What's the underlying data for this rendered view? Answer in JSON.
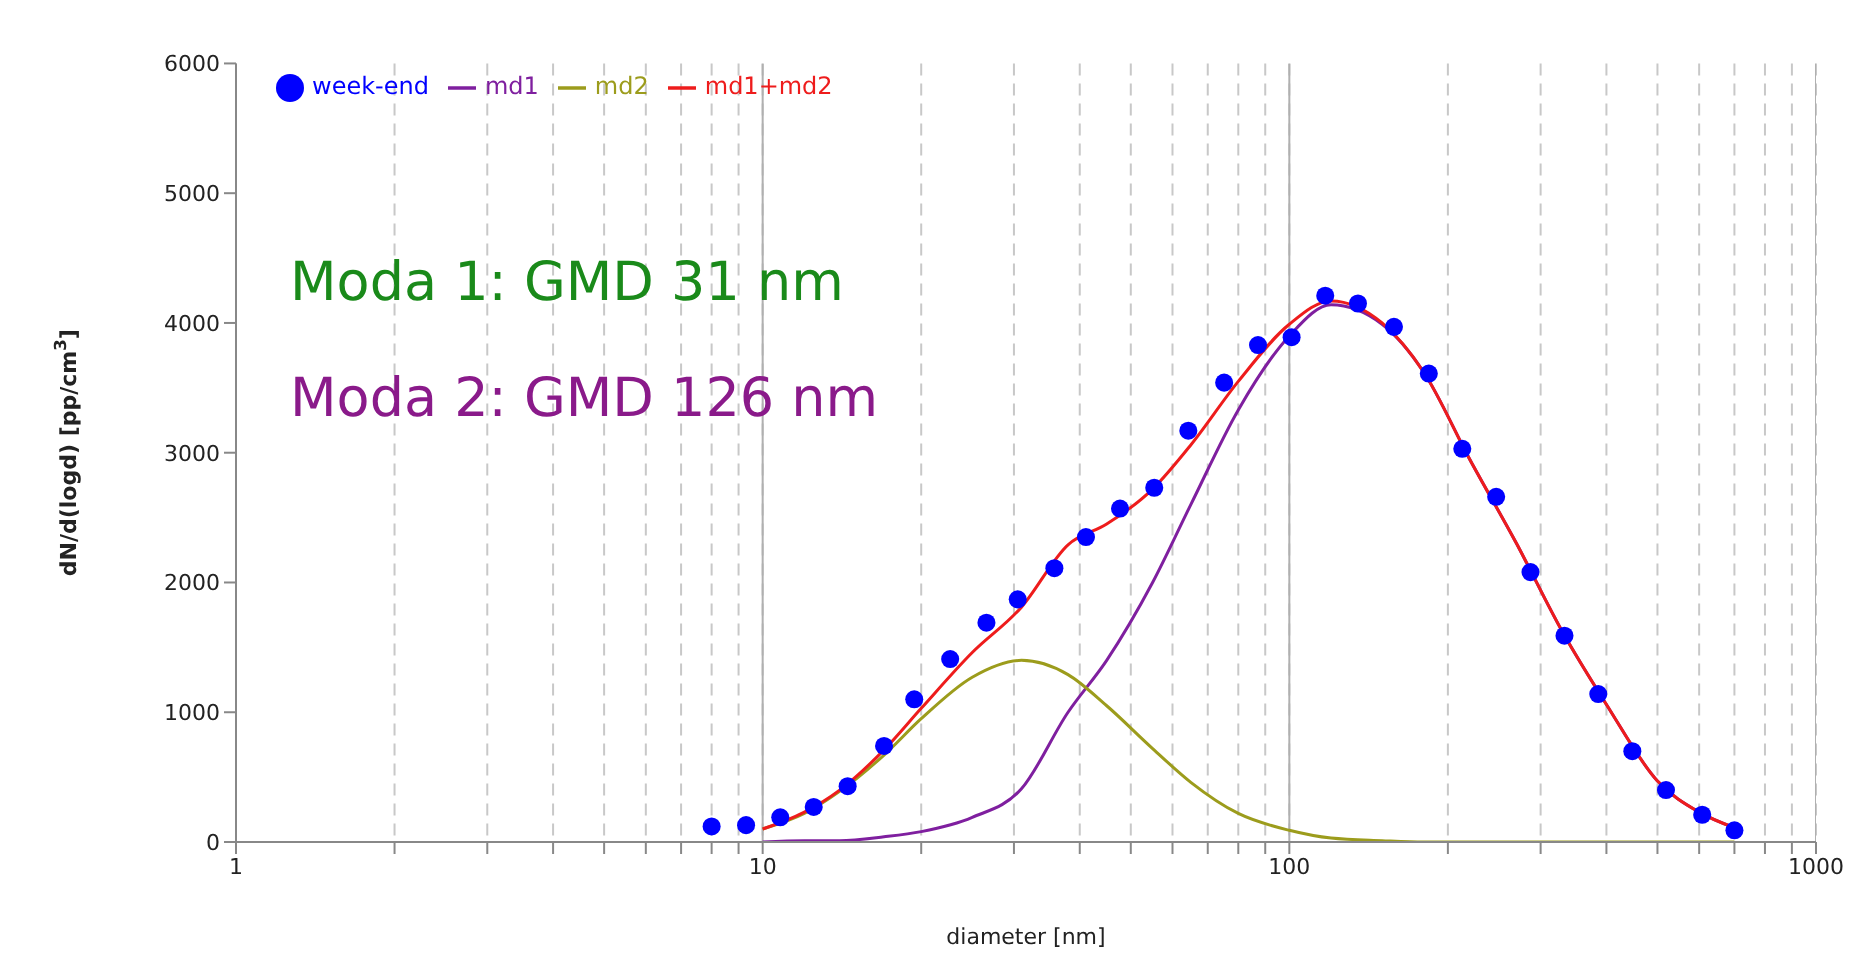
{
  "chart_data": {
    "type": "line",
    "xlabel": "diameter [nm]",
    "ylabel": "dN/d(logd) [pp/cm$^{3}$]",
    "annotations": [
      "Moda 1: GMD 31 nm",
      "Moda 2: GMD 126 nm"
    ],
    "log": "x",
    "grid": "x",
    "legend": "top left",
    "xlim": [
      1,
      1000
    ],
    "ylim": [
      0,
      6000
    ],
    "xticks": [
      1,
      {
        "value": 2,
        "label": null
      },
      {
        "value": 3,
        "label": null
      },
      {
        "value": 4,
        "label": null
      },
      {
        "value": 5,
        "label": null
      },
      {
        "value": 6,
        "label": null
      },
      {
        "value": 7,
        "label": null
      },
      {
        "value": 8,
        "label": null
      },
      {
        "value": 9,
        "label": null
      },
      10,
      {
        "value": 20,
        "label": null
      },
      {
        "value": 30,
        "label": null
      },
      {
        "value": 40,
        "label": null
      },
      {
        "value": 50,
        "label": null
      },
      {
        "value": 60,
        "label": null
      },
      {
        "value": 70,
        "label": null
      },
      {
        "value": 80,
        "label": null
      },
      {
        "value": 90,
        "label": null
      },
      100,
      {
        "value": 200,
        "label": null
      },
      {
        "value": 300,
        "label": null
      },
      {
        "value": 400,
        "label": null
      },
      {
        "value": 500,
        "label": null
      },
      {
        "value": 600,
        "label": null
      },
      {
        "value": 700,
        "label": null
      },
      {
        "value": 800,
        "label": null
      },
      {
        "value": 900,
        "label": null
      },
      1000
    ],
    "yticks": [
      0,
      1000,
      2000,
      3000,
      4000,
      5000,
      6000
    ],
    "series": [
      {
        "name": "week-end",
        "type": "scatter",
        "marker": "circle",
        "color": "#0000ff",
        "x": [
          8.0,
          9.3,
          10.8,
          12.5,
          14.5,
          17.0,
          19.4,
          22.7,
          26.6,
          30.5,
          35.8,
          41.1,
          47.7,
          55.4,
          64.3,
          75.2,
          87.2,
          101,
          117,
          135,
          158,
          184,
          213,
          247,
          287,
          333,
          386,
          448,
          519,
          608,
          700
        ],
        "values": [
          120,
          130,
          190,
          270,
          430,
          740,
          1100,
          1410,
          1690,
          1870,
          2110,
          2350,
          2570,
          2730,
          3170,
          3540,
          3830,
          3890,
          4210,
          4150,
          3970,
          3610,
          3030,
          2660,
          2080,
          1590,
          1140,
          700,
          400,
          210,
          90
        ]
      },
      {
        "name": "md1",
        "marker": "none",
        "color": "#7f1f9f",
        "x": [
          10,
          12,
          14,
          17,
          20,
          25,
          31,
          38,
          45,
          55,
          65,
          80,
          100,
          120,
          150,
          180,
          220,
          270,
          330,
          400,
          500,
          600,
          700
        ],
        "values": [
          0,
          10,
          10,
          40,
          80,
          190,
          410,
          1000,
          1400,
          2000,
          2600,
          3330,
          3900,
          4140,
          3990,
          3620,
          2950,
          2300,
          1620,
          1060,
          470,
          230,
          110
        ]
      },
      {
        "name": "md2",
        "marker": "none",
        "color": "#9c9c1c",
        "x": [
          10,
          12,
          14,
          17,
          20,
          25,
          31,
          38,
          45,
          55,
          65,
          80,
          100,
          120,
          150,
          180,
          220,
          270,
          330,
          400,
          500,
          600,
          700
        ],
        "values": [
          100,
          220,
          390,
          670,
          950,
          1270,
          1400,
          1290,
          1050,
          720,
          460,
          220,
          90,
          30,
          10,
          0,
          0,
          0,
          0,
          0,
          0,
          0,
          0
        ]
      },
      {
        "name": "md1+md2",
        "marker": "none",
        "color": "#ee1c1c",
        "x": [
          10,
          12,
          14,
          17,
          20,
          25,
          31,
          38,
          45,
          55,
          65,
          80,
          100,
          120,
          150,
          180,
          220,
          270,
          330,
          400,
          500,
          600,
          700
        ],
        "values": [
          100,
          230,
          400,
          710,
          1030,
          1460,
          1810,
          2290,
          2450,
          2720,
          3060,
          3550,
          3990,
          4170,
          4000,
          3620,
          2950,
          2300,
          1620,
          1060,
          470,
          230,
          110
        ]
      }
    ]
  }
}
